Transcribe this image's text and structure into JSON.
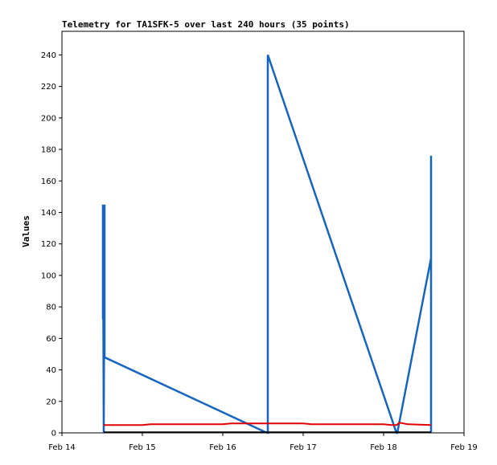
{
  "chart_data": {
    "type": "line",
    "title": "Telemetry for TA1SFK-5 over last 240 hours (35 points)",
    "xlabel": "",
    "ylabel": "Values",
    "xlim": [
      "Feb 14",
      "Feb 19"
    ],
    "ylim": [
      0,
      255
    ],
    "grid": false,
    "legend": "none",
    "x_ticks": [
      "Feb 14",
      "Feb 15",
      "Feb 16",
      "Feb 17",
      "Feb 18",
      "Feb 19"
    ],
    "y_ticks": [
      0,
      20,
      40,
      60,
      80,
      100,
      120,
      140,
      160,
      180,
      200,
      220,
      240
    ],
    "series": [
      {
        "color": "#1565c0",
        "x": [
          14.51,
          14.51,
          14.52,
          14.53,
          14.53,
          16.55,
          16.56,
          16.56,
          18.16,
          18.17,
          18.59,
          18.59,
          18.59
        ],
        "y": [
          72,
          145,
          0,
          145,
          48,
          0,
          0,
          240,
          0,
          0,
          111,
          0,
          176
        ]
      },
      {
        "color": "#e00000",
        "x": [
          14.52,
          15.0,
          15.1,
          16.0,
          16.1,
          17.0,
          17.1,
          18.0,
          18.1,
          18.16,
          18.2,
          18.3,
          18.59
        ],
        "y": [
          5,
          5,
          5.5,
          5.5,
          6,
          6,
          5.5,
          5.5,
          5,
          5,
          6.5,
          5.5,
          5
        ]
      },
      {
        "color": "#000000",
        "x": [
          14.52,
          18.59
        ],
        "y": [
          0.4,
          0.4
        ]
      }
    ]
  }
}
